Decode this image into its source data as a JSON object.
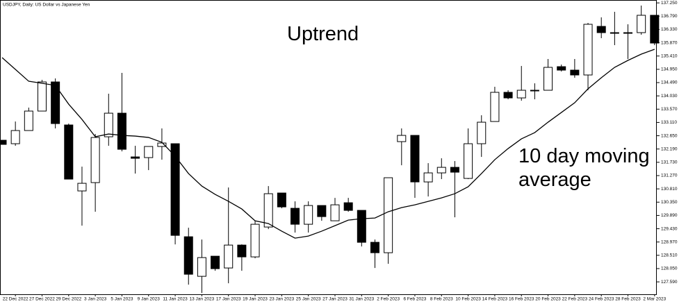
{
  "chart_data": {
    "type": "candlestick",
    "title": "USDJPY, Daily: US Dollar vs Japanese Yen",
    "annotations": [
      "Uptrend",
      "10 day moving average"
    ],
    "categories": [
      null,
      "22 Dec 2022",
      null,
      "27 Dec 2022",
      null,
      "29 Dec 2022",
      null,
      "3 Jan 2023",
      null,
      "5 Jan 2023",
      null,
      "9 Jan 2023",
      null,
      "11 Jan 2023",
      null,
      "13 Jan 2023",
      null,
      "17 Jan 2023",
      null,
      "19 Jan 2023",
      null,
      "23 Jan 2023",
      null,
      "25 Jan 2023",
      null,
      "27 Jan 2023",
      null,
      "31 Jan 2023",
      null,
      "2 Feb 2023",
      null,
      "6 Feb 2023",
      null,
      "8 Feb 2023",
      null,
      "10 Feb 2023",
      null,
      "14 Feb 2023",
      null,
      "16 Feb 2023",
      null,
      "20 Feb 2023",
      null,
      "22 Feb 2023",
      null,
      "24 Feb 2023",
      null,
      "28 Feb 2023",
      null,
      "2 Mar 2023"
    ],
    "open": [
      132.494,
      132.374,
      132.83,
      133.504,
      134.513,
      133.023,
      130.739,
      131.027,
      132.614,
      133.431,
      131.917,
      131.893,
      132.278,
      132.374,
      129.152,
      127.782,
      128.479,
      128.071,
      128.864,
      128.455,
      129.489,
      130.667,
      130.138,
      129.585,
      130.234,
      129.705,
      130.33,
      130.066,
      128.96,
      128.599,
      132.446,
      132.662,
      131.051,
      131.364,
      131.556,
      131.172,
      132.374,
      133.143,
      134.153,
      133.96,
      134.201,
      134.225,
      135.042,
      134.922,
      134.754,
      136.436,
      136.196,
      136.196,
      136.22,
      136.821
    ],
    "high": [
      132.494,
      133.143,
      133.624,
      134.585,
      134.634,
      133.071,
      131.58,
      132.71,
      134.105,
      134.826,
      132.302,
      132.278,
      132.903,
      132.374,
      129.465,
      129.056,
      128.479,
      130.859,
      128.888,
      129.705,
      130.907,
      130.667,
      130.378,
      130.378,
      130.234,
      130.499,
      130.499,
      130.066,
      129.056,
      131.196,
      132.903,
      132.662,
      131.701,
      131.869,
      131.773,
      132.903,
      133.359,
      134.345,
      134.225,
      135.066,
      134.465,
      135.307,
      135.114,
      135.307,
      136.557,
      136.749,
      136.941,
      136.509,
      137.158,
      136.821
    ],
    "low": [
      132.35,
      132.302,
      132.83,
      133.504,
      132.903,
      131.148,
      129.537,
      130.018,
      132.302,
      132.109,
      131.34,
      131.46,
      131.821,
      128.888,
      127.494,
      127.205,
      127.974,
      127.542,
      127.974,
      128.407,
      129.417,
      130.138,
      129.297,
      129.297,
      129.705,
      129.705,
      130.018,
      128.816,
      128.071,
      128.215,
      131.628,
      130.499,
      130.547,
      131.148,
      129.826,
      131.148,
      131.917,
      133.143,
      133.912,
      133.864,
      133.912,
      134.225,
      134.874,
      134.658,
      134.225,
      136.028,
      135.787,
      135.307,
      136.148,
      135.787
    ],
    "close": [
      132.35,
      132.83,
      133.504,
      134.513,
      133.071,
      131.148,
      131.003,
      132.59,
      133.431,
      132.181,
      131.869,
      132.278,
      132.398,
      129.2,
      127.854,
      128.431,
      128.047,
      128.864,
      128.455,
      129.585,
      130.643,
      130.186,
      129.585,
      130.234,
      129.85,
      130.258,
      130.066,
      128.96,
      128.599,
      131.196,
      132.662,
      131.051,
      131.364,
      131.556,
      131.388,
      132.374,
      133.119,
      134.153,
      133.96,
      134.225,
      134.225,
      135.018,
      134.922,
      134.754,
      136.509,
      136.22,
      136.22,
      136.22,
      136.821,
      135.859
    ],
    "moving_average": [
      135.355,
      134.946,
      134.537,
      134.465,
      134.393,
      133.744,
      133.215,
      132.614,
      132.71,
      132.662,
      132.638,
      132.59,
      132.422,
      131.941,
      131.34,
      130.907,
      130.619,
      130.378,
      130.114,
      129.705,
      129.609,
      129.345,
      129.104,
      129.176,
      129.345,
      129.537,
      129.729,
      129.777,
      129.801,
      130.018,
      130.162,
      130.258,
      130.378,
      130.499,
      130.643,
      130.883,
      131.34,
      131.821,
      132.206,
      132.542,
      132.758,
      133.119,
      133.455,
      133.792,
      134.273,
      134.658,
      135.018,
      135.259,
      135.475,
      135.643
    ],
    "up_color": "#ffffff",
    "down_color": "#000000",
    "line_color": "#000000",
    "ylim": [
      127.16,
      137.35
    ],
    "yticks": [
      {
        "value": 127.59,
        "label": "127.590"
      },
      {
        "value": 128.05,
        "label": "128.050"
      },
      {
        "value": 128.51,
        "label": "128.510"
      },
      {
        "value": 128.97,
        "label": "128.970"
      },
      {
        "value": 129.43,
        "label": "129.430"
      },
      {
        "value": 129.89,
        "label": "129.890"
      },
      {
        "value": 130.35,
        "label": "130.350"
      },
      {
        "value": 130.81,
        "label": "130.810"
      },
      {
        "value": 131.27,
        "label": "131.270"
      },
      {
        "value": 131.73,
        "label": "131.730"
      },
      {
        "value": 132.19,
        "label": "132.190"
      },
      {
        "value": 132.65,
        "label": "132.650"
      },
      {
        "value": 133.11,
        "label": "133.110"
      },
      {
        "value": 133.57,
        "label": "133.570"
      },
      {
        "value": 134.03,
        "label": "134.030"
      },
      {
        "value": 134.49,
        "label": "134.490"
      },
      {
        "value": 134.95,
        "label": "134.950"
      },
      {
        "value": 135.41,
        "label": "135.410"
      },
      {
        "value": 135.87,
        "label": "135.870"
      },
      {
        "value": 136.33,
        "label": "136.330"
      },
      {
        "value": 136.79,
        "label": "136.790"
      },
      {
        "value": 137.25,
        "label": "137.250"
      }
    ]
  }
}
